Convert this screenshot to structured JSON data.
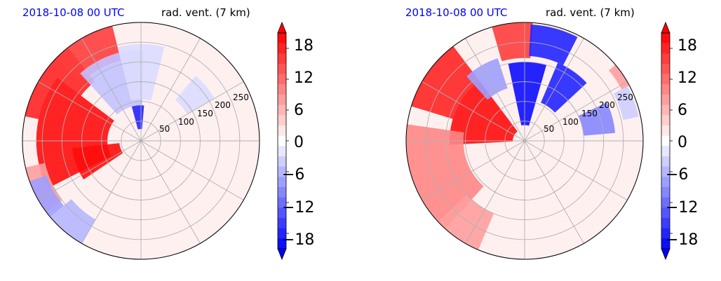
{
  "chart_data": [
    {
      "type": "heatmap",
      "projection": "polar",
      "date_label": "2018-10-08 00 UTC",
      "variable_label": "rad. vent. (7 km)",
      "radial_ticks": [
        "50",
        "100",
        "150",
        "200",
        "250"
      ],
      "radial_tick_values": [
        50,
        100,
        150,
        200,
        250
      ],
      "r_max": 300,
      "angular_gridlines": 12,
      "grid": true,
      "colorbar": {
        "vmin": -21,
        "vmax": 21,
        "levels": 21,
        "extend": "both",
        "ticks": [
          18,
          12,
          6,
          0,
          -6,
          -12,
          -18
        ],
        "tick_labels": [
          "18",
          "12",
          "6",
          "0",
          "−6",
          "−12",
          "−18"
        ],
        "cmap": "bwr"
      },
      "features": [
        {
          "angle_deg": 175,
          "spread": 32,
          "r": 175,
          "dr": 90,
          "value": 20
        },
        {
          "angle_deg": 200,
          "spread": 14,
          "r": 115,
          "dr": 60,
          "value": 20
        },
        {
          "angle_deg": 148,
          "spread": 20,
          "r": 250,
          "dr": 60,
          "value": 18
        },
        {
          "angle_deg": 120,
          "spread": 16,
          "r": 260,
          "dr": 50,
          "value": 16
        },
        {
          "angle_deg": 205,
          "spread": 12,
          "r": 280,
          "dr": 30,
          "value": 8
        },
        {
          "angle_deg": 110,
          "spread": 22,
          "r": 160,
          "dr": 70,
          "value": -5
        },
        {
          "angle_deg": 90,
          "spread": 14,
          "r": 175,
          "dr": 70,
          "value": -3
        },
        {
          "angle_deg": 40,
          "spread": 10,
          "r": 175,
          "dr": 40,
          "value": -3
        },
        {
          "angle_deg": 95,
          "spread": 10,
          "r": 60,
          "dr": 30,
          "value": -18
        },
        {
          "angle_deg": 210,
          "spread": 10,
          "r": 280,
          "dr": 25,
          "value": -8
        },
        {
          "angle_deg": 230,
          "spread": 10,
          "r": 270,
          "dr": 40,
          "value": -6
        }
      ]
    },
    {
      "type": "heatmap",
      "projection": "polar",
      "date_label": "2018-10-08 00 UTC",
      "variable_label": "rad. vent. (7 km)",
      "radial_ticks": [
        "50",
        "100",
        "150",
        "200",
        "250"
      ],
      "radial_tick_values": [
        50,
        100,
        150,
        200,
        250
      ],
      "r_max": 300,
      "angular_gridlines": 12,
      "grid": true,
      "colorbar": {
        "vmin": -21,
        "vmax": 21,
        "levels": 21,
        "extend": "both",
        "ticks": [
          18,
          12,
          6,
          0,
          -6,
          -12,
          -18
        ],
        "tick_labels": [
          "18",
          "12",
          "6",
          "0",
          "−6",
          "−12",
          "−18"
        ],
        "cmap": "bwr"
      },
      "features": [
        {
          "angle_deg": 155,
          "spread": 28,
          "r": 110,
          "dr": 80,
          "value": 20
        },
        {
          "angle_deg": 145,
          "spread": 18,
          "r": 240,
          "dr": 60,
          "value": 18
        },
        {
          "angle_deg": 200,
          "spread": 28,
          "r": 230,
          "dr": 75,
          "value": 10
        },
        {
          "angle_deg": 235,
          "spread": 12,
          "r": 250,
          "dr": 50,
          "value": 8
        },
        {
          "angle_deg": 96,
          "spread": 10,
          "r": 260,
          "dr": 50,
          "value": 16
        },
        {
          "angle_deg": 75,
          "spread": 12,
          "r": 255,
          "dr": 40,
          "value": -18
        },
        {
          "angle_deg": 88,
          "spread": 14,
          "r": 120,
          "dr": 80,
          "value": -20
        },
        {
          "angle_deg": 55,
          "spread": 12,
          "r": 160,
          "dr": 55,
          "value": -18
        },
        {
          "angle_deg": 15,
          "spread": 10,
          "r": 190,
          "dr": 40,
          "value": -10
        },
        {
          "angle_deg": 120,
          "spread": 12,
          "r": 180,
          "dr": 40,
          "value": -8
        },
        {
          "angle_deg": 20,
          "spread": 8,
          "r": 275,
          "dr": 20,
          "value": -4
        },
        {
          "angle_deg": 34,
          "spread": 6,
          "r": 290,
          "dr": 12,
          "value": 8
        }
      ]
    }
  ]
}
